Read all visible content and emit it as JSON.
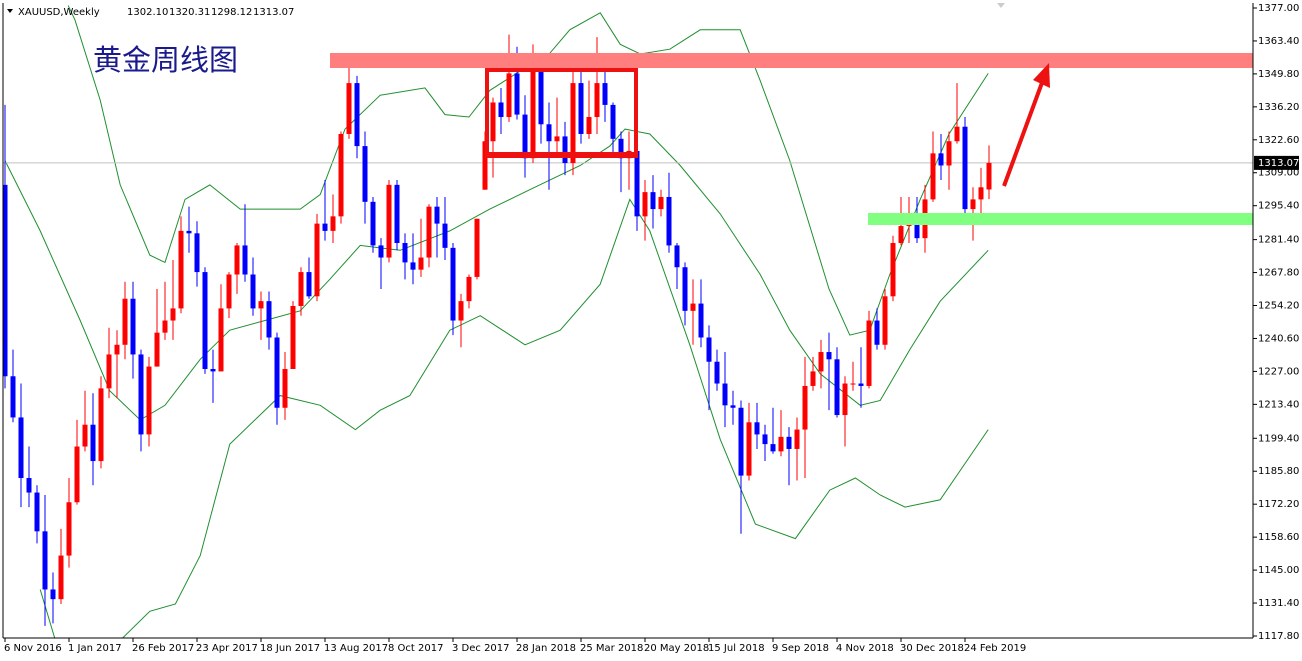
{
  "chart_data": {
    "type": "candlestick",
    "title": "黄金周线图",
    "header": {
      "symbol": "XAUUSD,Weekly",
      "ohlc": [
        "1302.10",
        "1320.31",
        "1298.12",
        "1313.07"
      ]
    },
    "current_price": {
      "value": 1313.07,
      "label": "1313.07"
    },
    "bull_color": "#ff0000",
    "bear_color": "#0000ff",
    "xlim": [
      -0.25,
      156
    ],
    "ylim": [
      1116.97,
      1379.06
    ],
    "xticks": [
      {
        "value": 0,
        "label": "6 Nov 2016"
      },
      {
        "value": 8,
        "label": "1 Jan 2017"
      },
      {
        "value": 16,
        "label": "26 Feb 2017"
      },
      {
        "value": 24,
        "label": "23 Apr 2017"
      },
      {
        "value": 32,
        "label": "18 Jun 2017"
      },
      {
        "value": 40,
        "label": "13 Aug 2017"
      },
      {
        "value": 48,
        "label": "8 Oct 2017"
      },
      {
        "value": 56,
        "label": "3 Dec 2017"
      },
      {
        "value": 64,
        "label": "28 Jan 2018"
      },
      {
        "value": 72,
        "label": "25 Mar 2018"
      },
      {
        "value": 80,
        "label": "20 May 2018"
      },
      {
        "value": 88,
        "label": "15 Jul 2018"
      },
      {
        "value": 96,
        "label": "9 Sep 2018"
      },
      {
        "value": 104,
        "label": "4 Nov 2018"
      },
      {
        "value": 112,
        "label": "30 Dec 2018"
      },
      {
        "value": 120,
        "label": "24 Feb 2019"
      }
    ],
    "yticks": [
      {
        "value": 1377,
        "label": "1377.00"
      },
      {
        "value": 1363.4,
        "label": "1363.40"
      },
      {
        "value": 1349.8,
        "label": "1349.80"
      },
      {
        "value": 1336.2,
        "label": "1336.20"
      },
      {
        "value": 1322.6,
        "label": "1322.60"
      },
      {
        "value": 1309,
        "label": "1309.00"
      },
      {
        "value": 1295.4,
        "label": "1295.40"
      },
      {
        "value": 1281.4,
        "label": "1281.40"
      },
      {
        "value": 1267.8,
        "label": "1267.80"
      },
      {
        "value": 1254.2,
        "label": "1254.20"
      },
      {
        "value": 1240.6,
        "label": "1240.60"
      },
      {
        "value": 1227,
        "label": "1227.00"
      },
      {
        "value": 1213.4,
        "label": "1213.40"
      },
      {
        "value": 1199.4,
        "label": "1199.40"
      },
      {
        "value": 1185.8,
        "label": "1185.80"
      },
      {
        "value": 1172.2,
        "label": "1172.20"
      },
      {
        "value": 1158.6,
        "label": "1158.60"
      },
      {
        "value": 1145,
        "label": "1145.00"
      },
      {
        "value": 1131.4,
        "label": "1131.40"
      },
      {
        "value": 1117.8,
        "label": "1117.80"
      }
    ],
    "candles": [
      [
        1304,
        1337,
        1220,
        1225
      ],
      [
        1225,
        1236,
        1206,
        1208
      ],
      [
        1208,
        1222,
        1171,
        1183
      ],
      [
        1183,
        1196,
        1171,
        1177
      ],
      [
        1177,
        1180,
        1156,
        1161
      ],
      [
        1161,
        1176,
        1122,
        1137
      ],
      [
        1137,
        1144,
        1123,
        1133
      ],
      [
        1133,
        1162,
        1131,
        1151
      ],
      [
        1151,
        1183,
        1146,
        1173
      ],
      [
        1173,
        1207,
        1172,
        1196
      ],
      [
        1196,
        1219,
        1194,
        1205
      ],
      [
        1205,
        1218,
        1180,
        1190
      ],
      [
        1190,
        1225,
        1187,
        1220
      ],
      [
        1220,
        1245,
        1216,
        1234
      ],
      [
        1234,
        1244,
        1216,
        1238
      ],
      [
        1238,
        1264,
        1232,
        1257
      ],
      [
        1257,
        1264,
        1224,
        1234
      ],
      [
        1234,
        1236,
        1194,
        1201
      ],
      [
        1201,
        1233,
        1196,
        1229
      ],
      [
        1229,
        1261,
        1229,
        1243
      ],
      [
        1243,
        1264,
        1240,
        1248
      ],
      [
        1248,
        1273,
        1240,
        1253
      ],
      [
        1253,
        1291,
        1251,
        1285
      ],
      [
        1285,
        1295,
        1276,
        1284
      ],
      [
        1284,
        1289,
        1262,
        1268
      ],
      [
        1268,
        1270,
        1226,
        1228
      ],
      [
        1228,
        1236,
        1214,
        1227
      ],
      [
        1227,
        1263,
        1229,
        1253
      ],
      [
        1253,
        1268,
        1249,
        1267
      ],
      [
        1267,
        1280,
        1259,
        1279
      ],
      [
        1279,
        1296,
        1264,
        1267
      ],
      [
        1267,
        1274,
        1250,
        1253
      ],
      [
        1253,
        1260,
        1240,
        1256
      ],
      [
        1256,
        1260,
        1236,
        1241
      ],
      [
        1241,
        1243,
        1205,
        1212
      ],
      [
        1212,
        1235,
        1207,
        1228
      ],
      [
        1228,
        1256,
        1228,
        1254
      ],
      [
        1254,
        1270,
        1250,
        1268
      ],
      [
        1268,
        1274,
        1257,
        1258
      ],
      [
        1258,
        1292,
        1256,
        1288
      ],
      [
        1288,
        1306,
        1281,
        1285
      ],
      [
        1285,
        1300,
        1280,
        1291
      ],
      [
        1291,
        1326,
        1288,
        1325
      ],
      [
        1325,
        1357,
        1323,
        1346
      ],
      [
        1346,
        1349,
        1315,
        1320
      ],
      [
        1320,
        1326,
        1288,
        1297
      ],
      [
        1297,
        1299,
        1276,
        1279
      ],
      [
        1279,
        1282,
        1261,
        1274
      ],
      [
        1274,
        1306,
        1272,
        1304
      ],
      [
        1304,
        1306,
        1277,
        1280
      ],
      [
        1280,
        1284,
        1265,
        1272
      ],
      [
        1272,
        1284,
        1263,
        1269
      ],
      [
        1269,
        1290,
        1266,
        1274
      ],
      [
        1274,
        1296,
        1270,
        1295
      ],
      [
        1295,
        1299,
        1274,
        1288
      ],
      [
        1288,
        1299,
        1273,
        1278
      ],
      [
        1278,
        1280,
        1242,
        1248
      ],
      [
        1248,
        1259,
        1237,
        1256
      ],
      [
        1256,
        1267,
        1253,
        1266
      ],
      [
        1266,
        1290,
        1265,
        1290
      ],
      [
        1302,
        1326,
        1302,
        1322
      ],
      [
        1322,
        1340,
        1307,
        1338
      ],
      [
        1338,
        1344,
        1325,
        1332
      ],
      [
        1332,
        1366,
        1330,
        1350
      ],
      [
        1350,
        1361,
        1331,
        1333
      ],
      [
        1333,
        1341,
        1307,
        1315
      ],
      [
        1315,
        1362,
        1313,
        1356
      ],
      [
        1356,
        1358,
        1321,
        1329
      ],
      [
        1329,
        1338,
        1302,
        1322
      ],
      [
        1322,
        1340,
        1316,
        1324
      ],
      [
        1324,
        1330,
        1308,
        1313
      ],
      [
        1313,
        1356,
        1308,
        1346
      ],
      [
        1346,
        1355,
        1321,
        1325
      ],
      [
        1325,
        1347,
        1323,
        1332
      ],
      [
        1332,
        1365,
        1325,
        1346
      ],
      [
        1346,
        1353,
        1330,
        1337
      ],
      [
        1337,
        1338,
        1317,
        1323
      ],
      [
        1323,
        1326,
        1301,
        1315
      ],
      [
        1315,
        1326,
        1302,
        1318
      ],
      [
        1318,
        1319,
        1285,
        1291
      ],
      [
        1291,
        1306,
        1281,
        1301
      ],
      [
        1301,
        1308,
        1286,
        1294
      ],
      [
        1294,
        1302,
        1291,
        1299
      ],
      [
        1299,
        1309,
        1276,
        1279
      ],
      [
        1279,
        1280,
        1261,
        1270
      ],
      [
        1270,
        1272,
        1246,
        1252
      ],
      [
        1252,
        1265,
        1238,
        1255
      ],
      [
        1255,
        1265,
        1237,
        1241
      ],
      [
        1241,
        1246,
        1211,
        1231
      ],
      [
        1231,
        1236,
        1219,
        1222
      ],
      [
        1222,
        1235,
        1204,
        1213
      ],
      [
        1213,
        1219,
        1205,
        1212
      ],
      [
        1212,
        1215,
        1160,
        1184
      ],
      [
        1184,
        1214,
        1182,
        1206
      ],
      [
        1206,
        1214,
        1195,
        1201
      ],
      [
        1201,
        1205,
        1190,
        1197
      ],
      [
        1197,
        1212,
        1193,
        1194
      ],
      [
        1194,
        1211,
        1192,
        1200
      ],
      [
        1200,
        1204,
        1180,
        1195
      ],
      [
        1195,
        1208,
        1182,
        1203
      ],
      [
        1203,
        1233,
        1183,
        1221
      ],
      [
        1221,
        1233,
        1219,
        1227
      ],
      [
        1227,
        1240,
        1220,
        1235
      ],
      [
        1235,
        1243,
        1211,
        1232
      ],
      [
        1232,
        1237,
        1208,
        1209
      ],
      [
        1209,
        1225,
        1196,
        1222
      ],
      [
        1222,
        1231,
        1219,
        1222
      ],
      [
        1222,
        1237,
        1212,
        1221
      ],
      [
        1221,
        1252,
        1220,
        1248
      ],
      [
        1248,
        1253,
        1236,
        1238
      ],
      [
        1238,
        1261,
        1236,
        1258
      ],
      [
        1258,
        1283,
        1256,
        1280
      ],
      [
        1280,
        1299,
        1279,
        1287
      ],
      [
        1287,
        1299,
        1280,
        1290
      ],
      [
        1290,
        1299,
        1280,
        1282
      ],
      [
        1282,
        1304,
        1276,
        1298
      ],
      [
        1298,
        1326,
        1297,
        1317
      ],
      [
        1317,
        1325,
        1306,
        1312
      ],
      [
        1312,
        1326,
        1302,
        1322
      ],
      [
        1322,
        1346,
        1321,
        1328
      ],
      [
        1328,
        1332,
        1290,
        1294
      ],
      [
        1294,
        1303,
        1281,
        1298
      ],
      [
        1298,
        1311,
        1289,
        1303
      ],
      [
        1302.1,
        1320.31,
        1298.12,
        1313.07
      ]
    ],
    "bands": {
      "color": "#1f8f2f",
      "upper": {
        "x": [
          7.9,
          8.75,
          11.9,
          14.4,
          18.1,
          20,
          22.5,
          25.6,
          29.4,
          32.6,
          36.9,
          39.4,
          42.5,
          46.9,
          52.5,
          55,
          58,
          60.6,
          64.4,
          67.5,
          70.6,
          74.4,
          76.9,
          79.4,
          83.1,
          86.9,
          91.9,
          94.4,
          98.1,
          103,
          105.6,
          108.1,
          110.6,
          114.4,
          118,
          122.9
        ],
        "values": [
          1378,
          1372,
          1339,
          1304,
          1275,
          1272,
          1298,
          1304,
          1294,
          1294,
          1294,
          1300,
          1327,
          1341,
          1344,
          1333,
          1332,
          1343,
          1351,
          1356,
          1368,
          1375,
          1362,
          1358,
          1360,
          1368,
          1368,
          1347,
          1314,
          1261,
          1242,
          1244,
          1267,
          1298,
          1325,
          1350
        ]
      },
      "middle": {
        "x": [
          0,
          4.4,
          9.4,
          13.1,
          16.9,
          20,
          24.4,
          28.1,
          32.5,
          36.9,
          40.6,
          44.4,
          49.4,
          55.6,
          60.6,
          65.6,
          71.9,
          75.6,
          77.5,
          80.6,
          84.4,
          89.4,
          94.4,
          98.1,
          101.9,
          106.9,
          109.4,
          113.1,
          116.9,
          122.9
        ],
        "values": [
          1314,
          1285,
          1248,
          1219,
          1207,
          1213,
          1232,
          1244,
          1248,
          1252,
          1265,
          1279,
          1277,
          1285,
          1294,
          1302,
          1312,
          1320,
          1327,
          1325,
          1312,
          1292,
          1267,
          1244,
          1226,
          1213,
          1215,
          1236,
          1256,
          1277
        ]
      },
      "lower": {
        "x": [
          4.4,
          6.3,
          14.4,
          18.1,
          21.3,
          24.4,
          28.1,
          34.4,
          39.4,
          43.8,
          46.9,
          50.6,
          55.6,
          59.4,
          65,
          69.4,
          74.4,
          78.1,
          80.6,
          85.6,
          89.4,
          93.8,
          98.8,
          103.1,
          106.3,
          109.4,
          112.5,
          116.9,
          122.9
        ],
        "values": [
          1137,
          1116,
          1116,
          1128,
          1131,
          1151,
          1197,
          1217,
          1213,
          1203,
          1211,
          1217,
          1244,
          1250,
          1238,
          1244,
          1263,
          1298,
          1285,
          1238,
          1199,
          1164,
          1158,
          1178,
          1183,
          1176,
          1171,
          1174,
          1203
        ]
      }
    }
  }
}
